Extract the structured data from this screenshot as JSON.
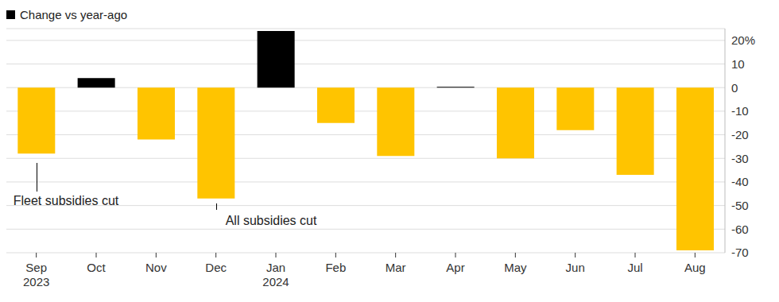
{
  "chart_data": {
    "type": "bar",
    "title": "Change vs year-ago",
    "categories": [
      "Sep 2023",
      "Oct",
      "Nov",
      "Dec",
      "Jan 2024",
      "Feb",
      "Mar",
      "Apr",
      "May",
      "Jun",
      "Jul",
      "Aug"
    ],
    "values": [
      -28,
      4,
      -22,
      -47,
      24,
      -15,
      -29,
      0.3,
      -30,
      -18,
      -37,
      -69
    ],
    "colors": [
      "#ffc400",
      "#000000",
      "#ffc400",
      "#ffc400",
      "#000000",
      "#ffc400",
      "#ffc400",
      "#000000",
      "#ffc400",
      "#ffc400",
      "#ffc400",
      "#ffc400"
    ],
    "ylim": [
      -70,
      25
    ],
    "yticks": [
      {
        "value": 20,
        "label": "20%"
      },
      10,
      0,
      -10,
      -20,
      -30,
      -40,
      -50,
      -60,
      -70
    ],
    "grid": true,
    "annotations": [
      {
        "text": "Fleet subsidies cut",
        "category": "Sep 2023"
      },
      {
        "text": "All subsidies cut",
        "category": "Dec"
      }
    ]
  }
}
